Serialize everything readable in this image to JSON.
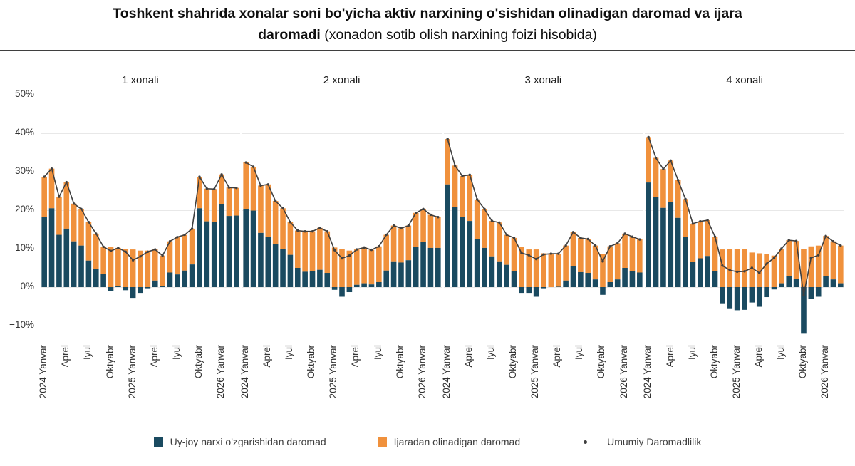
{
  "title": {
    "line1_bold": "Toshkent shahrida xonalar soni bo'yicha aktiv narxining o'sishidan olinadigan daromad va ijara",
    "line2_bold": "daromadi",
    "line2_normal": " (xonadon sotib olish narxining foizi hisobida)"
  },
  "colors": {
    "price": "#1a4a60",
    "rent": "#f0913c",
    "line": "#3f3f3f",
    "grid": "#e8e8e8"
  },
  "y_axis": {
    "tick_labels": [
      "50%",
      "40%",
      "30%",
      "20%",
      "10%",
      "0%",
      "−10%"
    ],
    "max": 50,
    "min": -10,
    "step": 10
  },
  "x_axis": {
    "tick_labels": [
      "2024  Yanvar",
      "Aprel",
      "Iyul",
      "Oktyabr",
      "2025  Yanvar",
      "Aprel",
      "Iyul",
      "Oktyabr",
      "2026  Yanvar"
    ],
    "tick_indices": [
      0,
      3,
      6,
      9,
      12,
      15,
      18,
      21,
      24
    ],
    "n_points": 27
  },
  "legend": {
    "items": [
      {
        "label": "Uy-joy narxi o'zgarishidan daromad",
        "swatch": "price"
      },
      {
        "label": "Ijaradan olinadigan daromad",
        "swatch": "rent"
      },
      {
        "label": "Umumiy Daromadlilik",
        "swatch": "line"
      }
    ]
  },
  "chart_data": [
    {
      "type": "bar",
      "stacked": true,
      "title": "1 xonali",
      "ylim": [
        -15,
        50
      ],
      "grid": true,
      "legend_position": "bottom",
      "series": [
        {
          "name": "Uy-joy narxi o'zgarishidan daromad",
          "type": "bar",
          "values": [
            18.3,
            20.5,
            13.6,
            15.2,
            11.9,
            10.8,
            6.9,
            4.7,
            3.5,
            -1.0,
            0.3,
            -0.8,
            -2.8,
            -1.5,
            -0.3,
            1.7,
            0.2,
            3.8,
            3.3,
            4.3,
            5.9,
            20.5,
            17.1,
            17.0,
            21.5,
            18.5,
            18.6
          ]
        },
        {
          "name": "Ijaradan olinadigan daromad",
          "type": "bar",
          "values": [
            10.4,
            10.3,
            9.9,
            12.1,
            9.8,
            9.5,
            10.0,
            9.2,
            7.0,
            10.4,
            9.9,
            10.0,
            9.8,
            9.5,
            9.5,
            8.1,
            8.0,
            8.1,
            9.7,
            9.3,
            9.3,
            8.2,
            8.5,
            8.5,
            7.8,
            7.4,
            7.2
          ]
        },
        {
          "name": "Umumiy Daromadlilik",
          "type": "line",
          "derived": "sum_of_bars"
        }
      ]
    },
    {
      "type": "bar",
      "stacked": true,
      "title": "2 xonali",
      "ylim": [
        -15,
        50
      ],
      "grid": true,
      "legend_position": "bottom",
      "series": [
        {
          "name": "Uy-joy narxi o'zgarishidan daromad",
          "type": "bar",
          "values": [
            20.3,
            19.9,
            14.1,
            13.1,
            11.3,
            9.9,
            8.4,
            5.0,
            4.0,
            4.2,
            4.5,
            3.7,
            -0.7,
            -2.5,
            -1.3,
            0.6,
            1.0,
            0.7,
            1.3,
            4.3,
            6.7,
            6.4,
            7.0,
            10.5,
            11.7,
            10.2,
            10.2
          ]
        },
        {
          "name": "Ijaradan olinadigan daromad",
          "type": "bar",
          "values": [
            12.1,
            11.4,
            12.3,
            13.6,
            11.1,
            10.6,
            8.5,
            9.7,
            10.5,
            10.3,
            10.9,
            10.8,
            10.3,
            10.0,
            9.5,
            9.2,
            9.3,
            9.0,
            9.3,
            9.3,
            9.3,
            8.9,
            9.0,
            8.8,
            8.6,
            8.6,
            8.0
          ]
        },
        {
          "name": "Umumiy Daromadlilik",
          "type": "line",
          "derived": "sum_of_bars"
        }
      ]
    },
    {
      "type": "bar",
      "stacked": true,
      "title": "3 xonali",
      "ylim": [
        -15,
        50
      ],
      "grid": true,
      "legend_position": "bottom",
      "series": [
        {
          "name": "Uy-joy narxi o'zgarishidan daromad",
          "type": "bar",
          "values": [
            26.7,
            20.9,
            18.2,
            17.2,
            12.5,
            10.2,
            8.0,
            6.7,
            5.8,
            4.1,
            -1.5,
            -1.5,
            -2.5,
            -0.3,
            0.0,
            0.1,
            1.7,
            5.4,
            3.9,
            3.7,
            2.0,
            -2.0,
            1.3,
            2.0,
            5.0,
            4.1,
            3.8
          ]
        },
        {
          "name": "Ijaradan olinadigan daromad",
          "type": "bar",
          "values": [
            11.8,
            10.7,
            10.7,
            12.0,
            10.3,
            10.1,
            9.2,
            10.1,
            7.8,
            8.7,
            10.4,
            9.8,
            9.8,
            8.8,
            8.7,
            8.6,
            9.1,
            8.9,
            8.9,
            8.8,
            8.8,
            8.7,
            9.3,
            9.4,
            8.9,
            9.0,
            8.6
          ]
        },
        {
          "name": "Umumiy Daromadlilik",
          "type": "line",
          "derived": "sum_of_bars"
        }
      ]
    },
    {
      "type": "bar",
      "stacked": true,
      "title": "4 xonali",
      "ylim": [
        -15,
        50
      ],
      "grid": true,
      "legend_position": "bottom",
      "series": [
        {
          "name": "Uy-joy narxi o'zgarishidan daromad",
          "type": "bar",
          "values": [
            27.2,
            23.5,
            20.6,
            22.1,
            18.0,
            13.1,
            6.5,
            7.5,
            8.1,
            4.1,
            -4.2,
            -5.5,
            -6.0,
            -5.9,
            -4.0,
            -5.1,
            -2.6,
            -0.6,
            1.0,
            2.9,
            2.2,
            -12.1,
            -3.0,
            -2.5,
            2.9,
            2.0,
            1.0
          ]
        },
        {
          "name": "Ijaradan olinadigan daromad",
          "type": "bar",
          "values": [
            11.8,
            10.1,
            10.1,
            10.8,
            9.8,
            9.8,
            10.0,
            9.6,
            9.3,
            9.0,
            9.8,
            9.9,
            10.0,
            10.0,
            9.0,
            8.8,
            8.7,
            8.2,
            9.0,
            9.3,
            9.8,
            10.0,
            10.6,
            10.8,
            10.4,
            9.9,
            9.8
          ]
        },
        {
          "name": "Umumiy Daromadlilik",
          "type": "line",
          "derived": "sum_of_bars"
        }
      ]
    }
  ]
}
